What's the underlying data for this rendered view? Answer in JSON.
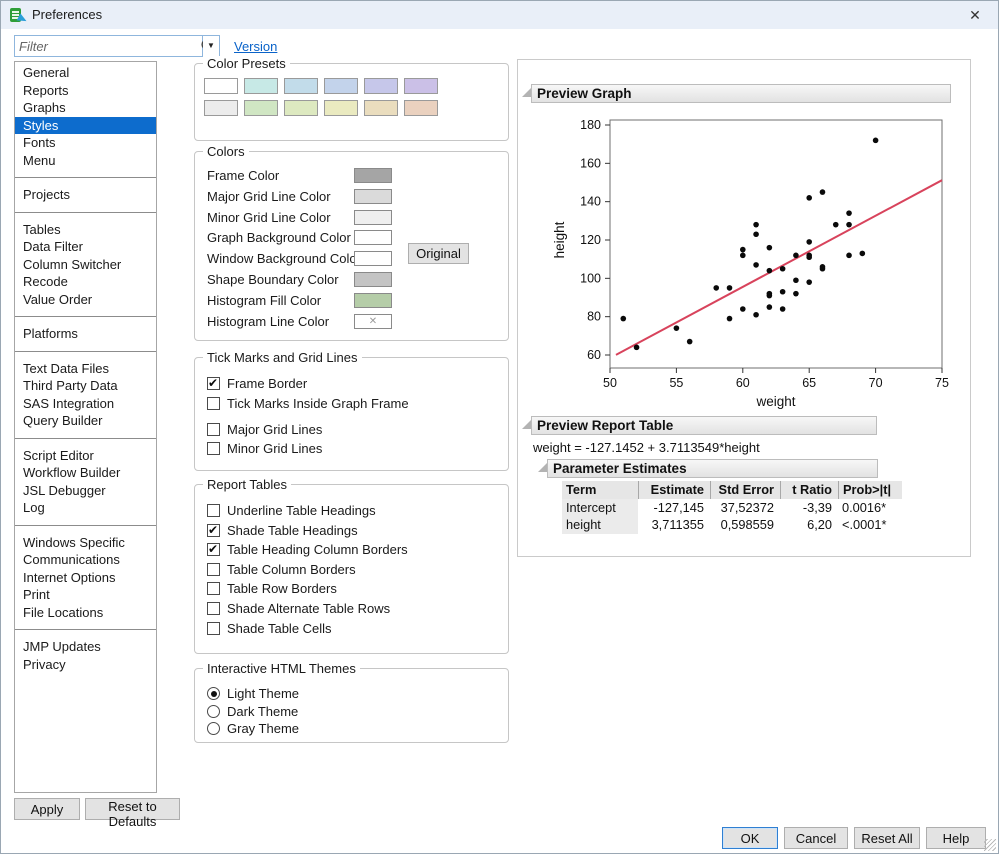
{
  "window": {
    "title": "Preferences",
    "close_glyph": "✕"
  },
  "filter": {
    "placeholder": "Filter",
    "version_label": "Version",
    "dropdown_glyph": "▼"
  },
  "sidebar": {
    "selected": "Styles",
    "groups": [
      [
        "General",
        "Reports",
        "Graphs",
        "Styles",
        "Fonts",
        "Menu"
      ],
      [
        "Projects"
      ],
      [
        "Tables",
        "Data Filter",
        "Column Switcher",
        "Recode",
        "Value Order"
      ],
      [
        "Platforms"
      ],
      [
        "Text Data Files",
        "Third Party Data",
        "SAS Integration",
        "Query Builder"
      ],
      [
        "Script Editor",
        "Workflow Builder",
        "JSL Debugger",
        "Log"
      ],
      [
        "Windows Specific",
        "Communications",
        "Internet Options",
        "Print",
        "File Locations"
      ],
      [
        "JMP Updates",
        "Privacy"
      ]
    ]
  },
  "left_buttons": {
    "apply": "Apply",
    "reset_defaults": "Reset to Defaults"
  },
  "color_presets": {
    "title": "Color Presets",
    "rows": [
      [
        "#ffffff",
        "#c7e9e6",
        "#c2dcea",
        "#c3d3eb",
        "#c6c7ea",
        "#cbc0e7"
      ],
      [
        "#ececec",
        "#d0e6c3",
        "#dde9c0",
        "#eaeac0",
        "#eaddbe",
        "#ead1bf"
      ]
    ]
  },
  "colors": {
    "title": "Colors",
    "original_label": "Original",
    "none_glyph": "✕",
    "rows": [
      {
        "label": "Frame Color",
        "color": "#a5a5a5",
        "none": false
      },
      {
        "label": "Major Grid Line Color",
        "color": "#dadada",
        "none": false
      },
      {
        "label": "Minor Grid Line Color",
        "color": "#efefef",
        "none": false
      },
      {
        "label": "Graph Background Color",
        "color": "#ffffff",
        "none": false
      },
      {
        "label": "Window Background Color",
        "color": "#ffffff",
        "none": false
      },
      {
        "label": "Shape Boundary Color",
        "color": "#c4c4c4",
        "none": false
      },
      {
        "label": "Histogram Fill Color",
        "color": "#b5cda8",
        "none": false
      },
      {
        "label": "Histogram Line Color",
        "color": "#ffffff",
        "none": true
      }
    ]
  },
  "tick_marks": {
    "title": "Tick Marks and Grid Lines",
    "items": [
      {
        "label": "Frame Border",
        "checked": true,
        "gap_after": false
      },
      {
        "label": "Tick Marks Inside Graph Frame",
        "checked": false,
        "gap_after": true
      },
      {
        "label": "Major Grid Lines",
        "checked": false,
        "gap_after": false
      },
      {
        "label": "Minor Grid Lines",
        "checked": false,
        "gap_after": false
      }
    ]
  },
  "report_tables": {
    "title": "Report Tables",
    "items": [
      {
        "label": "Underline Table Headings",
        "checked": false
      },
      {
        "label": "Shade Table Headings",
        "checked": true
      },
      {
        "label": "Table Heading Column Borders",
        "checked": true
      },
      {
        "label": "Table Column Borders",
        "checked": false
      },
      {
        "label": "Table Row Borders",
        "checked": false
      },
      {
        "label": "Shade Alternate Table Rows",
        "checked": false
      },
      {
        "label": "Shade Table Cells",
        "checked": false
      }
    ]
  },
  "html_themes": {
    "title": "Interactive HTML Themes",
    "options": [
      {
        "label": "Light Theme",
        "selected": true
      },
      {
        "label": "Dark Theme",
        "selected": false
      },
      {
        "label": "Gray Theme",
        "selected": false
      }
    ]
  },
  "preview": {
    "graph_title": "Preview Graph",
    "report_title": "Preview Report Table",
    "equation": "weight = -127.1452 + 3.7113549*height",
    "param_estimates": {
      "title": "Parameter Estimates",
      "columns": [
        "Term",
        "Estimate",
        "Std Error",
        "t Ratio",
        "Prob>|t|"
      ],
      "rows": [
        [
          "Intercept",
          "-127,145",
          "37,52372",
          "-3,39",
          "0.0016*"
        ],
        [
          "height",
          "3,711355",
          "0,598559",
          "6,20",
          "<.0001*"
        ]
      ]
    }
  },
  "chart_data": {
    "type": "scatter",
    "title": "",
    "xlabel": "weight",
    "ylabel": "height",
    "xlim": [
      50,
      75
    ],
    "ylim": [
      60,
      180
    ],
    "x_ticks": [
      50,
      55,
      60,
      65,
      70,
      75
    ],
    "y_ticks": [
      60,
      80,
      100,
      120,
      140,
      160,
      180
    ],
    "grid": false,
    "frame_border": true,
    "point_color": "#0a0a0a",
    "points": [
      [
        51,
        79
      ],
      [
        52,
        64
      ],
      [
        55,
        74
      ],
      [
        56,
        67
      ],
      [
        58,
        95
      ],
      [
        59,
        95
      ],
      [
        59,
        79
      ],
      [
        60,
        115
      ],
      [
        60,
        112
      ],
      [
        60,
        84
      ],
      [
        61,
        128
      ],
      [
        61,
        123
      ],
      [
        61,
        107
      ],
      [
        61,
        81
      ],
      [
        62,
        116
      ],
      [
        62,
        104
      ],
      [
        62,
        92
      ],
      [
        62,
        91
      ],
      [
        62,
        85
      ],
      [
        63,
        105
      ],
      [
        63,
        93
      ],
      [
        63,
        84
      ],
      [
        64,
        112
      ],
      [
        64,
        99
      ],
      [
        64,
        92
      ],
      [
        65,
        142
      ],
      [
        65,
        119
      ],
      [
        65,
        112
      ],
      [
        65,
        111
      ],
      [
        65,
        98
      ],
      [
        66,
        145
      ],
      [
        66,
        106
      ],
      [
        66,
        105
      ],
      [
        67,
        128
      ],
      [
        68,
        134
      ],
      [
        68,
        128
      ],
      [
        68,
        112
      ],
      [
        69,
        113
      ],
      [
        70,
        172
      ]
    ],
    "fit_line": {
      "slope": 3.7113549,
      "intercept": -127.1452,
      "x_range": [
        50.45,
        75
      ],
      "color": "#d8435c"
    }
  },
  "footer_buttons": [
    "OK",
    "Cancel",
    "Reset All",
    "Help"
  ]
}
